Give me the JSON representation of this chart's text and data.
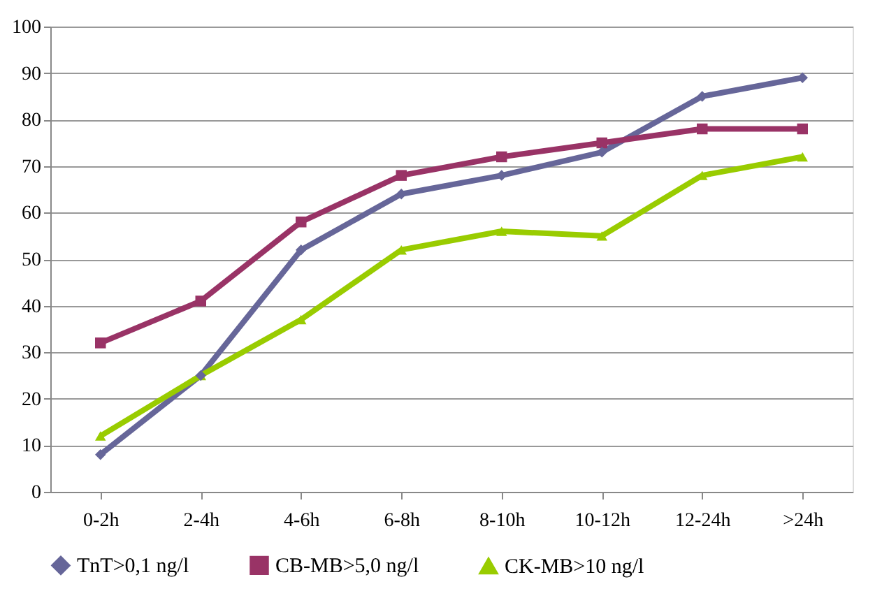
{
  "chart_data": {
    "type": "line",
    "categories": [
      "0-2h",
      "2-4h",
      "4-6h",
      "6-8h",
      "8-10h",
      "10-12h",
      "12-24h",
      ">24h"
    ],
    "series": [
      {
        "name": "TnT>0,1 ng/l",
        "color": "#666699",
        "marker": "diamond",
        "values": [
          8,
          25,
          52,
          64,
          68,
          73,
          85,
          89
        ]
      },
      {
        "name": "CB-MB>5,0 ng/l",
        "color": "#993366",
        "marker": "square",
        "values": [
          32,
          41,
          58,
          68,
          72,
          75,
          78,
          78
        ]
      },
      {
        "name": "CK-MB>10 ng/l",
        "color": "#99cc00",
        "marker": "triangle",
        "values": [
          12,
          25,
          37,
          52,
          56,
          55,
          68,
          72
        ]
      }
    ],
    "ylim": [
      0,
      100
    ],
    "yticks": [
      0,
      10,
      20,
      30,
      40,
      50,
      60,
      70,
      80,
      90,
      100
    ],
    "grid": "y",
    "legend": "bottom",
    "line_style": "solid"
  }
}
